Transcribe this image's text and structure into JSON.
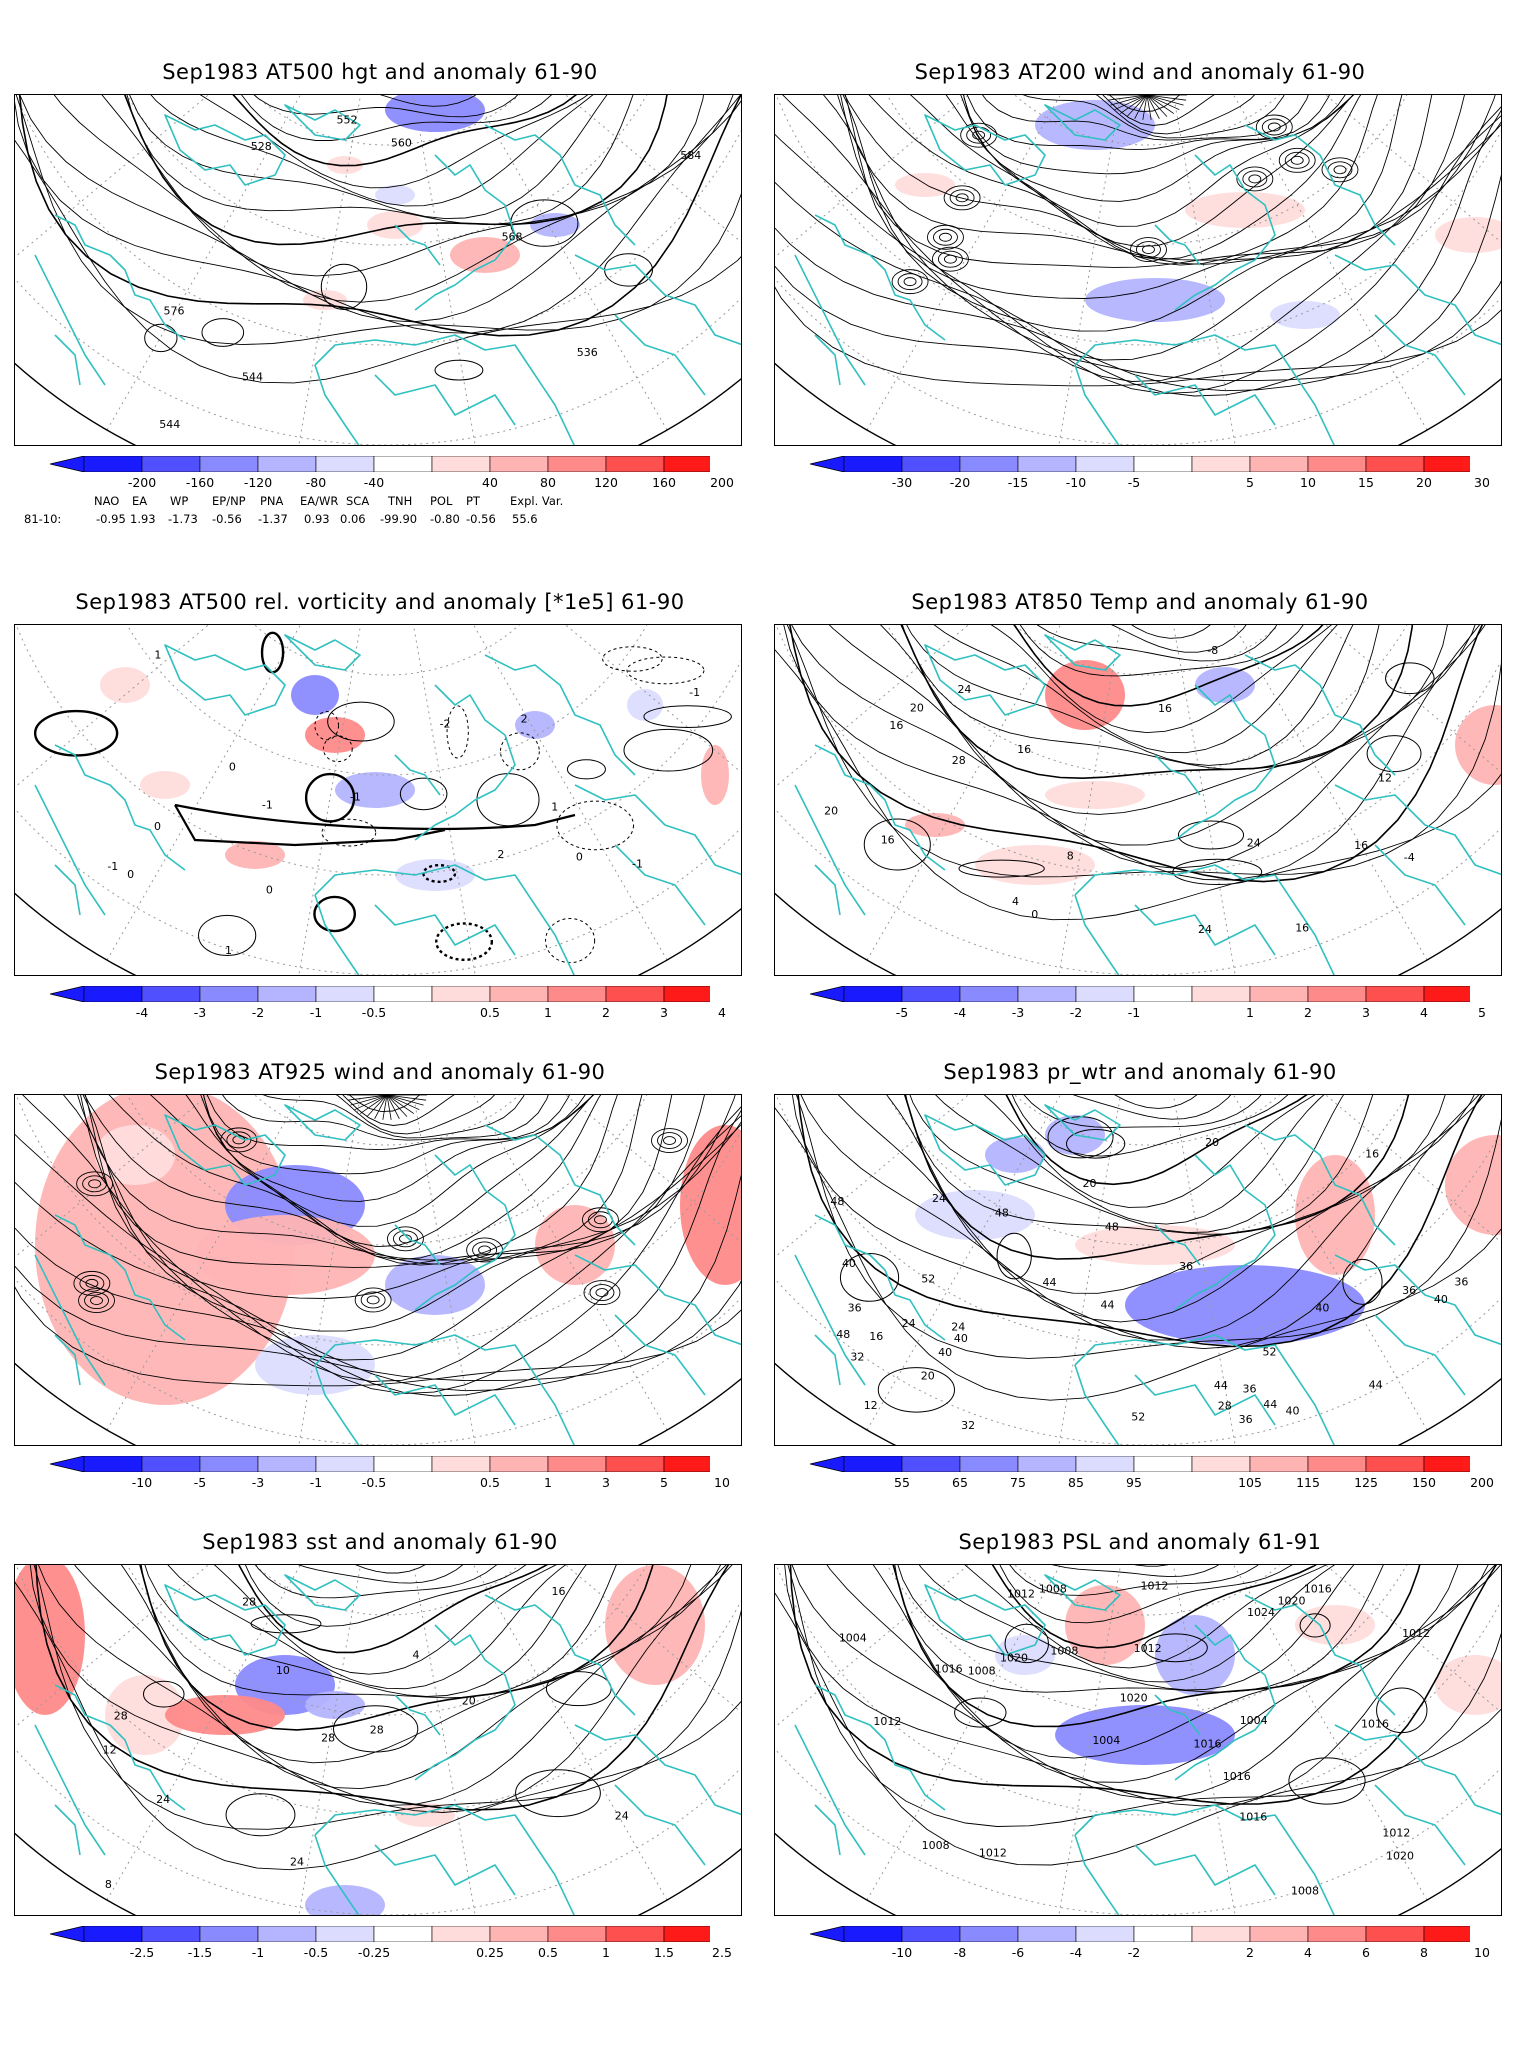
{
  "colors": {
    "coast": "#30c0c0",
    "contour": "#000000",
    "grid": "#9a9a9a",
    "neg": [
      "#1a1aff",
      "#5050ff",
      "#8a8aff",
      "#b4b4ff",
      "#dcdcff"
    ],
    "pos": [
      "#ffdcdc",
      "#ffb4b4",
      "#ff8a8a",
      "#ff5050",
      "#ff1a1a"
    ]
  },
  "panels": [
    {
      "id": "p1",
      "title": "Sep1983 AT500 hgt and anomaly 61-90",
      "field": "contour",
      "colorbar_ticks": [
        "-200",
        "-160",
        "-120",
        "-80",
        "-40",
        "40",
        "80",
        "120",
        "160",
        "200"
      ],
      "contour_labels": [
        "528",
        "536",
        "544",
        "544",
        "552",
        "560",
        "568",
        "576",
        "584"
      ],
      "anomaly_patches": [
        {
          "sign": "neg",
          "level": 2
        },
        {
          "sign": "pos",
          "level": 1
        },
        {
          "sign": "pos",
          "level": 0
        },
        {
          "sign": "neg",
          "level": 1
        },
        {
          "sign": "pos",
          "level": 0
        },
        {
          "sign": "neg",
          "level": 0
        },
        {
          "sign": "pos",
          "level": 0
        }
      ],
      "teleconnection": {
        "row_label": "81-10:",
        "headers": [
          "NAO",
          "EA",
          "WP",
          "EP/NP",
          "PNA",
          "EA/WR",
          "SCA",
          "TNH",
          "POL",
          "PT",
          "Expl. Var."
        ],
        "values": [
          "-0.95",
          "1.93",
          "-1.73",
          "-0.56",
          "-1.37",
          "0.93",
          "0.06",
          "-99.90",
          "-0.80",
          "-0.56",
          "55.6"
        ]
      }
    },
    {
      "id": "p2",
      "title": "Sep1983 AT200 wind and anomaly 61-90",
      "field": "streamline",
      "colorbar_ticks": [
        "-30",
        "-20",
        "-15",
        "-10",
        "-5",
        "5",
        "10",
        "15",
        "20",
        "30"
      ],
      "contour_labels": [],
      "anomaly_patches": [
        {
          "sign": "neg",
          "level": 1
        },
        {
          "sign": "pos",
          "level": 0
        },
        {
          "sign": "neg",
          "level": 1
        },
        {
          "sign": "pos",
          "level": 0
        },
        {
          "sign": "neg",
          "level": 0
        },
        {
          "sign": "pos",
          "level": 0
        }
      ]
    },
    {
      "id": "p3",
      "title": "Sep1983 AT500 rel. vorticity and anomaly [*1e5] 61-90",
      "field": "vorticity",
      "colorbar_ticks": [
        "-4",
        "-3",
        "-2",
        "-1",
        "-0.5",
        "0.5",
        "1",
        "2",
        "3",
        "4"
      ],
      "contour_labels": [
        "1",
        "2",
        "-1",
        "0",
        "-1",
        "2",
        "0",
        "-1",
        "1",
        "-1",
        "0",
        "0",
        "-1",
        "0",
        "1",
        "-2"
      ],
      "anomaly_patches": [
        {
          "sign": "neg",
          "level": 2
        },
        {
          "sign": "pos",
          "level": 2
        },
        {
          "sign": "neg",
          "level": 1
        },
        {
          "sign": "pos",
          "level": 1
        },
        {
          "sign": "neg",
          "level": 0
        },
        {
          "sign": "pos",
          "level": 0
        },
        {
          "sign": "neg",
          "level": 1
        },
        {
          "sign": "pos",
          "level": 0
        },
        {
          "sign": "neg",
          "level": 0
        },
        {
          "sign": "pos",
          "level": 1
        }
      ]
    },
    {
      "id": "p4",
      "title": "Sep1983 AT850 Temp and anomaly 61-90",
      "field": "contour",
      "colorbar_ticks": [
        "-5",
        "-4",
        "-3",
        "-2",
        "-1",
        "1",
        "2",
        "3",
        "4",
        "5"
      ],
      "contour_labels": [
        "16",
        "16",
        "0",
        "-4",
        "-8",
        "4",
        "8",
        "12",
        "20",
        "16",
        "24",
        "28",
        "24",
        "20",
        "16",
        "16",
        "24",
        "16"
      ],
      "anomaly_patches": [
        {
          "sign": "pos",
          "level": 2
        },
        {
          "sign": "pos",
          "level": 1
        },
        {
          "sign": "pos",
          "level": 0
        },
        {
          "sign": "neg",
          "level": 1
        },
        {
          "sign": "pos",
          "level": 1
        },
        {
          "sign": "pos",
          "level": 0
        }
      ]
    },
    {
      "id": "p5",
      "title": "Sep1983 AT925 wind and anomaly 61-90",
      "field": "streamline",
      "colorbar_ticks": [
        "-10",
        "-5",
        "-3",
        "-1",
        "-0.5",
        "0.5",
        "1",
        "3",
        "5",
        "10"
      ],
      "contour_labels": [],
      "anomaly_patches": [
        {
          "sign": "pos",
          "level": 1
        },
        {
          "sign": "neg",
          "level": 2
        },
        {
          "sign": "pos",
          "level": 1
        },
        {
          "sign": "pos",
          "level": 2
        },
        {
          "sign": "neg",
          "level": 1
        },
        {
          "sign": "pos",
          "level": 1
        },
        {
          "sign": "neg",
          "level": 0
        },
        {
          "sign": "pos",
          "level": 0
        }
      ]
    },
    {
      "id": "p6",
      "title": "Sep1983 pr_wtr and anomaly 61-90",
      "field": "contour",
      "colorbar_ticks": [
        "55",
        "65",
        "75",
        "85",
        "95",
        "105",
        "115",
        "125",
        "150",
        "200"
      ],
      "contour_labels": [
        "52",
        "36",
        "44",
        "40",
        "48",
        "52",
        "44",
        "36",
        "40",
        "20",
        "24",
        "32",
        "12",
        "16",
        "20",
        "24",
        "16",
        "20",
        "36",
        "40",
        "44",
        "48",
        "36",
        "40",
        "44",
        "48",
        "52",
        "28",
        "24",
        "32",
        "36",
        "40",
        "48",
        "44",
        "40",
        "36"
      ],
      "anomaly_patches": [
        {
          "sign": "neg",
          "level": 2
        },
        {
          "sign": "neg",
          "level": 1
        },
        {
          "sign": "pos",
          "level": 1
        },
        {
          "sign": "pos",
          "level": 0
        },
        {
          "sign": "neg",
          "level": 0
        },
        {
          "sign": "pos",
          "level": 1
        },
        {
          "sign": "neg",
          "level": 1
        }
      ]
    },
    {
      "id": "p7",
      "title": "Sep1983 sst and anomaly 61-90",
      "field": "contour",
      "colorbar_ticks": [
        "-2.5",
        "-1.5",
        "-1",
        "-0.5",
        "-0.25",
        "0.25",
        "0.5",
        "1",
        "1.5",
        "2.5"
      ],
      "contour_labels": [
        "24",
        "28",
        "24",
        "20",
        "16",
        "12",
        "8",
        "4",
        "10",
        "24",
        "28",
        "28",
        "28"
      ],
      "anomaly_patches": [
        {
          "sign": "pos",
          "level": 2
        },
        {
          "sign": "pos",
          "level": 0
        },
        {
          "sign": "neg",
          "level": 2
        },
        {
          "sign": "pos",
          "level": 2
        },
        {
          "sign": "neg",
          "level": 1
        },
        {
          "sign": "pos",
          "level": 1
        },
        {
          "sign": "neg",
          "level": 1
        },
        {
          "sign": "pos",
          "level": 0
        }
      ]
    },
    {
      "id": "p8",
      "title": "Sep1983 PSL and anomaly 61-91",
      "field": "contour",
      "colorbar_ticks": [
        "-10",
        "-8",
        "-6",
        "-4",
        "-2",
        "2",
        "4",
        "6",
        "8",
        "10"
      ],
      "contour_labels": [
        "1016",
        "1016",
        "1008",
        "1016",
        "1020",
        "1024",
        "1012",
        "1004",
        "1008",
        "1020",
        "1004",
        "1012",
        "1012",
        "1016",
        "1012",
        "1008",
        "1016",
        "1020",
        "1012",
        "1008",
        "1008",
        "1020",
        "1016",
        "1012",
        "1012",
        "1004"
      ],
      "anomaly_patches": [
        {
          "sign": "neg",
          "level": 2
        },
        {
          "sign": "pos",
          "level": 1
        },
        {
          "sign": "neg",
          "level": 1
        },
        {
          "sign": "pos",
          "level": 0
        },
        {
          "sign": "neg",
          "level": 0
        },
        {
          "sign": "pos",
          "level": 0
        }
      ]
    }
  ]
}
